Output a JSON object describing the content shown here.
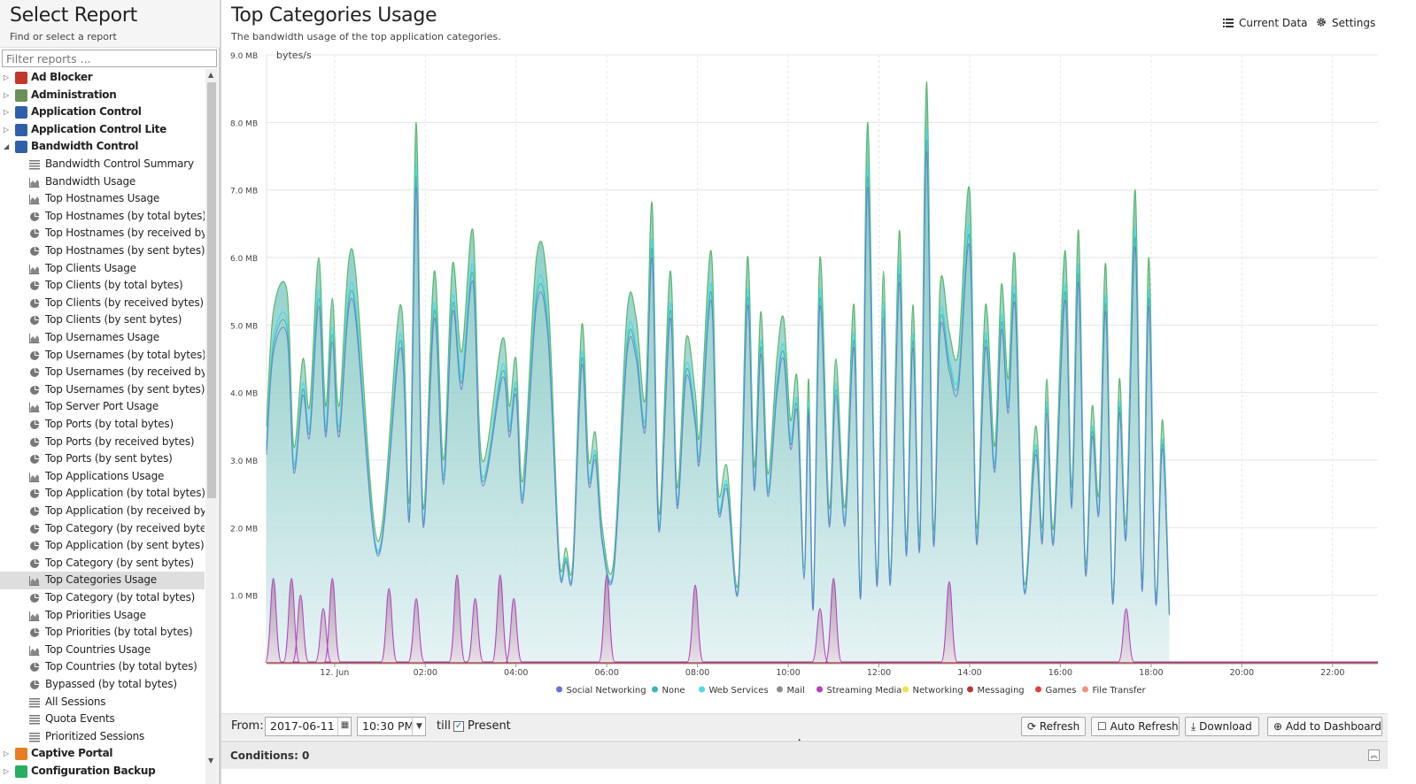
{
  "left_panel": {
    "title": "Select Report",
    "subtitle": "Find or select a report",
    "filter_placeholder": "Filter reports ..."
  },
  "tree": [
    {
      "label": "Ad Blocker",
      "type": "folder",
      "state": "collapsed",
      "icon": "ad-blocker-icon",
      "color": "#c0392b"
    },
    {
      "label": "Administration",
      "type": "folder",
      "state": "collapsed",
      "icon": "administration-icon",
      "color": "#6d8f5a"
    },
    {
      "label": "Application Control",
      "type": "folder",
      "state": "collapsed",
      "icon": "application-control-icon",
      "color": "#2f5fa8"
    },
    {
      "label": "Application Control Lite",
      "type": "folder",
      "state": "collapsed",
      "icon": "application-control-lite-icon",
      "color": "#2f5fa8"
    },
    {
      "label": "Bandwidth Control",
      "type": "folder",
      "state": "expanded",
      "icon": "bandwidth-control-icon",
      "color": "#2f5fa8"
    },
    {
      "label": "Bandwidth Control Summary",
      "type": "list"
    },
    {
      "label": "Bandwidth Usage",
      "type": "area"
    },
    {
      "label": "Top Hostnames Usage",
      "type": "area"
    },
    {
      "label": "Top Hostnames (by total bytes)",
      "type": "pie"
    },
    {
      "label": "Top Hostnames (by received byte...",
      "type": "pie"
    },
    {
      "label": "Top Hostnames (by sent bytes)",
      "type": "pie"
    },
    {
      "label": "Top Clients Usage",
      "type": "area"
    },
    {
      "label": "Top Clients (by total bytes)",
      "type": "pie"
    },
    {
      "label": "Top Clients (by received bytes)",
      "type": "pie"
    },
    {
      "label": "Top Clients (by sent bytes)",
      "type": "pie"
    },
    {
      "label": "Top Usernames Usage",
      "type": "area"
    },
    {
      "label": "Top Usernames (by total bytes)",
      "type": "pie"
    },
    {
      "label": "Top Usernames (by received bytes)",
      "type": "pie"
    },
    {
      "label": "Top Usernames (by sent bytes)",
      "type": "pie"
    },
    {
      "label": "Top Server Port Usage",
      "type": "area"
    },
    {
      "label": "Top Ports (by total bytes)",
      "type": "pie"
    },
    {
      "label": "Top Ports (by received bytes)",
      "type": "pie"
    },
    {
      "label": "Top Ports (by sent bytes)",
      "type": "pie"
    },
    {
      "label": "Top Applications Usage",
      "type": "area"
    },
    {
      "label": "Top Application (by total bytes)",
      "type": "pie"
    },
    {
      "label": "Top Application (by received bytes)",
      "type": "pie"
    },
    {
      "label": "Top Category (by received bytes)",
      "type": "pie"
    },
    {
      "label": "Top Application (by sent bytes)",
      "type": "pie"
    },
    {
      "label": "Top Category (by sent bytes)",
      "type": "pie"
    },
    {
      "label": "Top Categories Usage",
      "type": "area",
      "selected": true
    },
    {
      "label": "Top Category (by total bytes)",
      "type": "pie"
    },
    {
      "label": "Top Priorities Usage",
      "type": "area"
    },
    {
      "label": "Top Priorities (by total bytes)",
      "type": "pie"
    },
    {
      "label": "Top Countries Usage",
      "type": "area"
    },
    {
      "label": "Top Countries (by total bytes)",
      "type": "pie"
    },
    {
      "label": "Bypassed (by total bytes)",
      "type": "pie"
    },
    {
      "label": "All Sessions",
      "type": "list"
    },
    {
      "label": "Quota Events",
      "type": "list"
    },
    {
      "label": "Prioritized Sessions",
      "type": "list"
    },
    {
      "label": "Captive Portal",
      "type": "folder",
      "state": "collapsed",
      "icon": "captive-portal-icon",
      "color": "#e67e22"
    },
    {
      "label": "Configuration Backup",
      "type": "folder",
      "state": "collapsed",
      "icon": "configuration-backup-icon",
      "color": "#27ae60"
    }
  ],
  "report": {
    "title": "Top Categories Usage",
    "subtitle": "The bandwidth usage of the top application categories.",
    "current_data_label": "Current Data",
    "settings_label": "Settings"
  },
  "chart_data": {
    "type": "area",
    "ylabel": "bytes/s",
    "yticks": [
      "1.0 MB",
      "2.0 MB",
      "3.0 MB",
      "4.0 MB",
      "5.0 MB",
      "6.0 MB",
      "7.0 MB",
      "8.0 MB",
      "9.0 MB"
    ],
    "ylim": [
      0,
      9
    ],
    "y_unit": "MB",
    "x_unit": "hours since 2017-06-11 22:30",
    "xlim": [
      0,
      24.5
    ],
    "xticks": [
      {
        "label": "12. Jun",
        "x": 1.5
      },
      {
        "label": "02:00",
        "x": 3.5
      },
      {
        "label": "04:00",
        "x": 5.5
      },
      {
        "label": "06:00",
        "x": 7.5
      },
      {
        "label": "08:00",
        "x": 9.5
      },
      {
        "label": "10:00",
        "x": 11.5
      },
      {
        "label": "12:00",
        "x": 13.5
      },
      {
        "label": "14:00",
        "x": 15.5
      },
      {
        "label": "16:00",
        "x": 17.5
      },
      {
        "label": "18:00",
        "x": 19.5
      },
      {
        "label": "20:00",
        "x": 21.5
      },
      {
        "label": "22:00",
        "x": 23.5
      }
    ],
    "grid": true,
    "legend_position": "bottom",
    "series": [
      {
        "name": "Social Networking",
        "color": "#6b6fd1"
      },
      {
        "name": "None",
        "color": "#3fb5b0"
      },
      {
        "name": "Web Services",
        "color": "#4fd8e8"
      },
      {
        "name": "Mail",
        "color": "#8d8d8d"
      },
      {
        "name": "Streaming Media",
        "color": "#b13fbf"
      },
      {
        "name": "Networking",
        "color": "#f0e04a"
      },
      {
        "name": "Messaging",
        "color": "#b03a3a"
      },
      {
        "name": "Games",
        "color": "#e04040"
      },
      {
        "name": "File Transfer",
        "color": "#f0907a"
      }
    ],
    "total_peaks": [
      [
        0.0,
        3.5
      ],
      [
        0.15,
        5.2
      ],
      [
        0.45,
        5.5
      ],
      [
        0.6,
        3.2
      ],
      [
        0.8,
        4.5
      ],
      [
        0.95,
        3.8
      ],
      [
        1.15,
        6.0
      ],
      [
        1.3,
        3.8
      ],
      [
        1.45,
        5.4
      ],
      [
        1.6,
        3.8
      ],
      [
        1.9,
        6.1
      ],
      [
        2.45,
        1.8
      ],
      [
        2.95,
        5.3
      ],
      [
        3.15,
        2.4
      ],
      [
        3.3,
        8.0
      ],
      [
        3.45,
        2.3
      ],
      [
        3.7,
        5.8
      ],
      [
        3.9,
        3.0
      ],
      [
        4.1,
        5.9
      ],
      [
        4.3,
        4.6
      ],
      [
        4.55,
        6.4
      ],
      [
        4.75,
        3.0
      ],
      [
        5.2,
        4.8
      ],
      [
        5.35,
        3.8
      ],
      [
        5.5,
        4.5
      ],
      [
        5.65,
        2.7
      ],
      [
        5.95,
        6.0
      ],
      [
        6.2,
        5.5
      ],
      [
        6.45,
        1.6
      ],
      [
        6.6,
        1.7
      ],
      [
        6.75,
        1.5
      ],
      [
        6.95,
        5.0
      ],
      [
        7.1,
        3.0
      ],
      [
        7.25,
        3.4
      ],
      [
        7.4,
        2.0
      ],
      [
        7.65,
        1.5
      ],
      [
        7.95,
        5.2
      ],
      [
        8.15,
        5.1
      ],
      [
        8.35,
        3.9
      ],
      [
        8.5,
        6.8
      ],
      [
        8.65,
        2.2
      ],
      [
        8.9,
        5.8
      ],
      [
        9.05,
        2.6
      ],
      [
        9.25,
        4.8
      ],
      [
        9.45,
        4.0
      ],
      [
        9.55,
        3.4
      ],
      [
        9.8,
        6.1
      ],
      [
        9.95,
        2.6
      ],
      [
        10.15,
        2.9
      ],
      [
        10.4,
        1.2
      ],
      [
        10.6,
        6.0
      ],
      [
        10.75,
        2.9
      ],
      [
        10.9,
        5.2
      ],
      [
        11.05,
        2.8
      ],
      [
        11.25,
        4.5
      ],
      [
        11.4,
        5.1
      ],
      [
        11.55,
        3.6
      ],
      [
        11.7,
        4.2
      ],
      [
        11.85,
        1.4
      ],
      [
        11.95,
        4.2
      ],
      [
        12.05,
        0.9
      ],
      [
        12.2,
        6.0
      ],
      [
        12.4,
        2.3
      ],
      [
        12.55,
        4.5
      ],
      [
        12.75,
        2.3
      ],
      [
        12.95,
        5.3
      ],
      [
        13.1,
        1.1
      ],
      [
        13.25,
        8.0
      ],
      [
        13.45,
        1.3
      ],
      [
        13.6,
        5.8
      ],
      [
        13.75,
        1.3
      ],
      [
        13.95,
        6.4
      ],
      [
        14.1,
        1.8
      ],
      [
        14.25,
        5.3
      ],
      [
        14.4,
        1.9
      ],
      [
        14.55,
        8.6
      ],
      [
        14.7,
        2.0
      ],
      [
        14.85,
        5.6
      ],
      [
        15.05,
        4.9
      ],
      [
        15.25,
        4.6
      ],
      [
        15.5,
        7.0
      ],
      [
        15.65,
        2.0
      ],
      [
        15.85,
        5.3
      ],
      [
        16.05,
        3.2
      ],
      [
        16.2,
        5.6
      ],
      [
        16.35,
        4.2
      ],
      [
        16.5,
        6.0
      ],
      [
        16.7,
        1.2
      ],
      [
        16.95,
        3.5
      ],
      [
        17.1,
        2.0
      ],
      [
        17.2,
        4.2
      ],
      [
        17.35,
        2.0
      ],
      [
        17.6,
        6.1
      ],
      [
        17.75,
        2.6
      ],
      [
        17.9,
        6.4
      ],
      [
        18.05,
        1.5
      ],
      [
        18.2,
        3.8
      ],
      [
        18.35,
        2.5
      ],
      [
        18.5,
        5.9
      ],
      [
        18.65,
        1.0
      ],
      [
        18.8,
        4.2
      ],
      [
        18.95,
        2.1
      ],
      [
        19.15,
        7.0
      ],
      [
        19.3,
        1.2
      ],
      [
        19.45,
        6.0
      ],
      [
        19.6,
        1.0
      ],
      [
        19.75,
        3.6
      ],
      [
        19.9,
        0.8
      ]
    ],
    "streaming_media_peaks": [
      [
        0.15,
        1.25
      ],
      [
        0.55,
        1.25
      ],
      [
        0.75,
        1.0
      ],
      [
        1.25,
        0.8
      ],
      [
        1.45,
        1.25
      ],
      [
        2.7,
        1.1
      ],
      [
        3.3,
        0.95
      ],
      [
        4.2,
        1.3
      ],
      [
        4.6,
        0.95
      ],
      [
        5.15,
        1.3
      ],
      [
        5.45,
        0.95
      ],
      [
        7.5,
        1.3
      ],
      [
        9.45,
        1.15
      ],
      [
        12.2,
        0.8
      ],
      [
        12.5,
        1.25
      ],
      [
        15.05,
        1.2
      ],
      [
        18.95,
        0.8
      ]
    ]
  },
  "controls": {
    "from_label": "From:",
    "date_value": "2017-06-11",
    "time_value": "10:30 PM",
    "till_label": "till",
    "present_label": "Present",
    "present_checked": true,
    "refresh_label": "Refresh",
    "auto_refresh_label": "Auto Refresh",
    "download_label": "Download",
    "add_to_dashboard_label": "Add to Dashboard"
  },
  "conditions": {
    "label": "Conditions: 0"
  }
}
